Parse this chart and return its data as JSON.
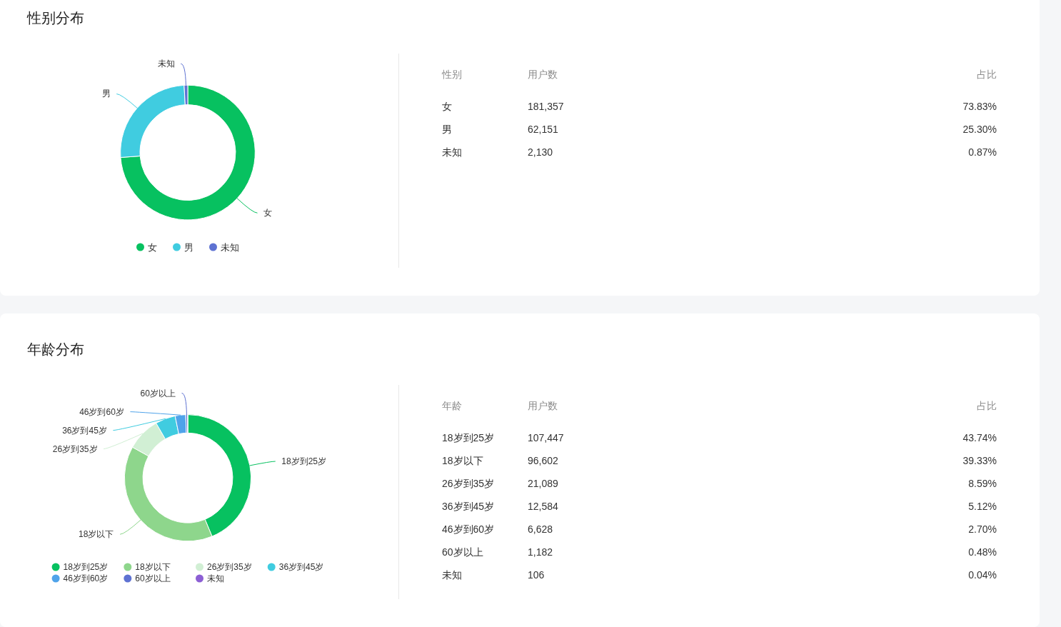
{
  "chart_data": [
    {
      "type": "donut",
      "title": "性别分布",
      "categories": [
        "女",
        "男",
        "未知"
      ],
      "values": [
        73.83,
        25.3,
        0.87
      ],
      "colors": [
        "#07c160",
        "#40cce0",
        "#5e72d2"
      ],
      "annotations": [
        "性别",
        "用户数",
        "占比",
        {
          "text": "181,357",
          "x": "女"
        },
        {
          "text": "62,151",
          "x": "男"
        },
        {
          "text": "2,130",
          "x": "未知"
        },
        {
          "text": "73.83%",
          "x": "女"
        },
        {
          "text": "25.30%",
          "x": "男"
        },
        {
          "text": "0.87%",
          "x": "未知"
        }
      ],
      "legend": "bottom"
    },
    {
      "type": "donut",
      "title": "年龄分布",
      "categories": [
        "18岁到25岁",
        "18岁以下",
        "26岁到35岁",
        "36岁到45岁",
        "46岁到60岁",
        "60岁以上",
        "未知"
      ],
      "values": [
        43.74,
        39.33,
        8.59,
        5.12,
        2.7,
        0.48,
        0.04
      ],
      "colors": [
        "#07c160",
        "#8ed68c",
        "#d1efd4",
        "#40cce0",
        "#4fa3ea",
        "#5e72d2",
        "#8c5fd4"
      ],
      "annotations": [
        "年龄",
        "用户数",
        "占比",
        {
          "text": "107,447",
          "x": "18岁到25岁"
        },
        {
          "text": "96,602",
          "x": "18岁以下"
        },
        {
          "text": "21,089",
          "x": "26岁到35岁"
        },
        {
          "text": "12,584",
          "x": "36岁到45岁"
        },
        {
          "text": "6,628",
          "x": "46岁到60岁"
        },
        {
          "text": "1,182",
          "x": "60岁以上"
        },
        {
          "text": "106",
          "x": "未知"
        },
        {
          "text": "43.74%",
          "x": "18岁到25岁"
        },
        {
          "text": "39.33%",
          "x": "18岁以下"
        },
        {
          "text": "8.59%",
          "x": "26岁到35岁"
        },
        {
          "text": "5.12%",
          "x": "36岁到45岁"
        },
        {
          "text": "2.70%",
          "x": "46岁到60岁"
        },
        {
          "text": "0.48%",
          "x": "60岁以上"
        },
        {
          "text": "0.04%",
          "x": "未知"
        }
      ],
      "legend": "bottom"
    }
  ]
}
